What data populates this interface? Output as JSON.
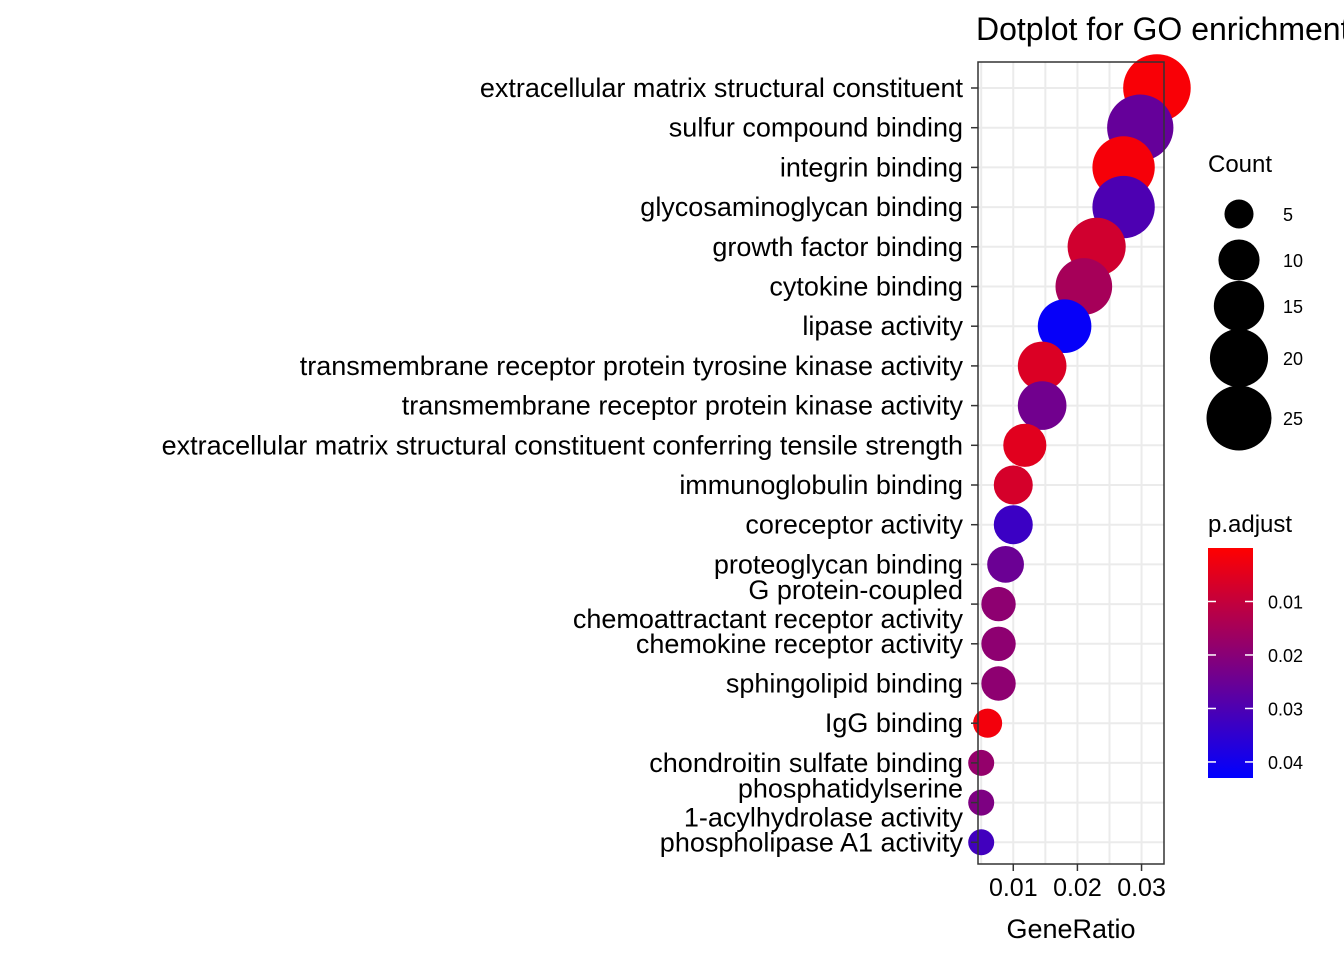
{
  "chart_data": {
    "type": "scatter",
    "title": "Dotplot for GO enrichment",
    "xlabel": "GeneRatio",
    "ylabel": "",
    "xlim": [
      0.0045,
      0.0335
    ],
    "xticks": [
      0.01,
      0.02,
      0.03
    ],
    "xtick_labels": [
      "0.01",
      "0.02",
      "0.03"
    ],
    "grid": true,
    "categories": [
      {
        "label": [
          "extracellular matrix structural constituent"
        ],
        "gene_ratio": 0.0324,
        "count": 27,
        "p_adjust": 0.001
      },
      {
        "label": [
          "sulfur compound binding"
        ],
        "gene_ratio": 0.0298,
        "count": 26,
        "p_adjust": 0.026
      },
      {
        "label": [
          "integrin binding"
        ],
        "gene_ratio": 0.0272,
        "count": 23,
        "p_adjust": 0.0015
      },
      {
        "label": [
          "glycosaminoglycan binding"
        ],
        "gene_ratio": 0.0272,
        "count": 23,
        "p_adjust": 0.03
      },
      {
        "label": [
          "growth factor binding"
        ],
        "gene_ratio": 0.023,
        "count": 20,
        "p_adjust": 0.008
      },
      {
        "label": [
          "cytokine binding"
        ],
        "gene_ratio": 0.021,
        "count": 19,
        "p_adjust": 0.015
      },
      {
        "label": [
          "lipase activity"
        ],
        "gene_ratio": 0.018,
        "count": 17,
        "p_adjust": 0.042
      },
      {
        "label": [
          "transmembrane receptor protein tyrosine kinase activity"
        ],
        "gene_ratio": 0.0145,
        "count": 14,
        "p_adjust": 0.006
      },
      {
        "label": [
          "transmembrane receptor protein kinase activity"
        ],
        "gene_ratio": 0.0145,
        "count": 14,
        "p_adjust": 0.024
      },
      {
        "label": [
          "extracellular matrix structural constituent conferring tensile strength"
        ],
        "gene_ratio": 0.0118,
        "count": 11,
        "p_adjust": 0.005
      },
      {
        "label": [
          "immunoglobulin binding"
        ],
        "gene_ratio": 0.01,
        "count": 9,
        "p_adjust": 0.007
      },
      {
        "label": [
          "coreceptor activity"
        ],
        "gene_ratio": 0.01,
        "count": 9,
        "p_adjust": 0.033
      },
      {
        "label": [
          "proteoglycan binding"
        ],
        "gene_ratio": 0.0088,
        "count": 8,
        "p_adjust": 0.025
      },
      {
        "label": [
          "G protein-coupled",
          "chemoattractant receptor activity"
        ],
        "gene_ratio": 0.0077,
        "count": 7,
        "p_adjust": 0.019
      },
      {
        "label": [
          "chemokine receptor activity"
        ],
        "gene_ratio": 0.0077,
        "count": 7,
        "p_adjust": 0.019
      },
      {
        "label": [
          "sphingolipid binding"
        ],
        "gene_ratio": 0.0077,
        "count": 7,
        "p_adjust": 0.019
      },
      {
        "label": [
          "IgG binding"
        ],
        "gene_ratio": 0.006,
        "count": 5,
        "p_adjust": 0.002
      },
      {
        "label": [
          "chondroitin sulfate binding"
        ],
        "gene_ratio": 0.005,
        "count": 4,
        "p_adjust": 0.018
      },
      {
        "label": [
          "phosphatidylserine",
          "1-acylhydrolase activity"
        ],
        "gene_ratio": 0.005,
        "count": 4,
        "p_adjust": 0.022
      },
      {
        "label": [
          "phospholipase A1 activity"
        ],
        "gene_ratio": 0.005,
        "count": 4,
        "p_adjust": 0.032
      }
    ],
    "size_legend": {
      "title": "Count",
      "values": [
        5,
        10,
        15,
        20,
        25
      ],
      "labels": [
        "5",
        "10",
        "15",
        "20",
        "25"
      ]
    },
    "color_legend": {
      "title": "p.adjust",
      "range": [
        0.0,
        0.043
      ],
      "breaks": [
        0.01,
        0.02,
        0.03,
        0.04
      ],
      "labels": [
        "0.01",
        "0.02",
        "0.03",
        "0.04"
      ],
      "low_color": "#ff0000",
      "high_color": "#0000ff"
    }
  }
}
